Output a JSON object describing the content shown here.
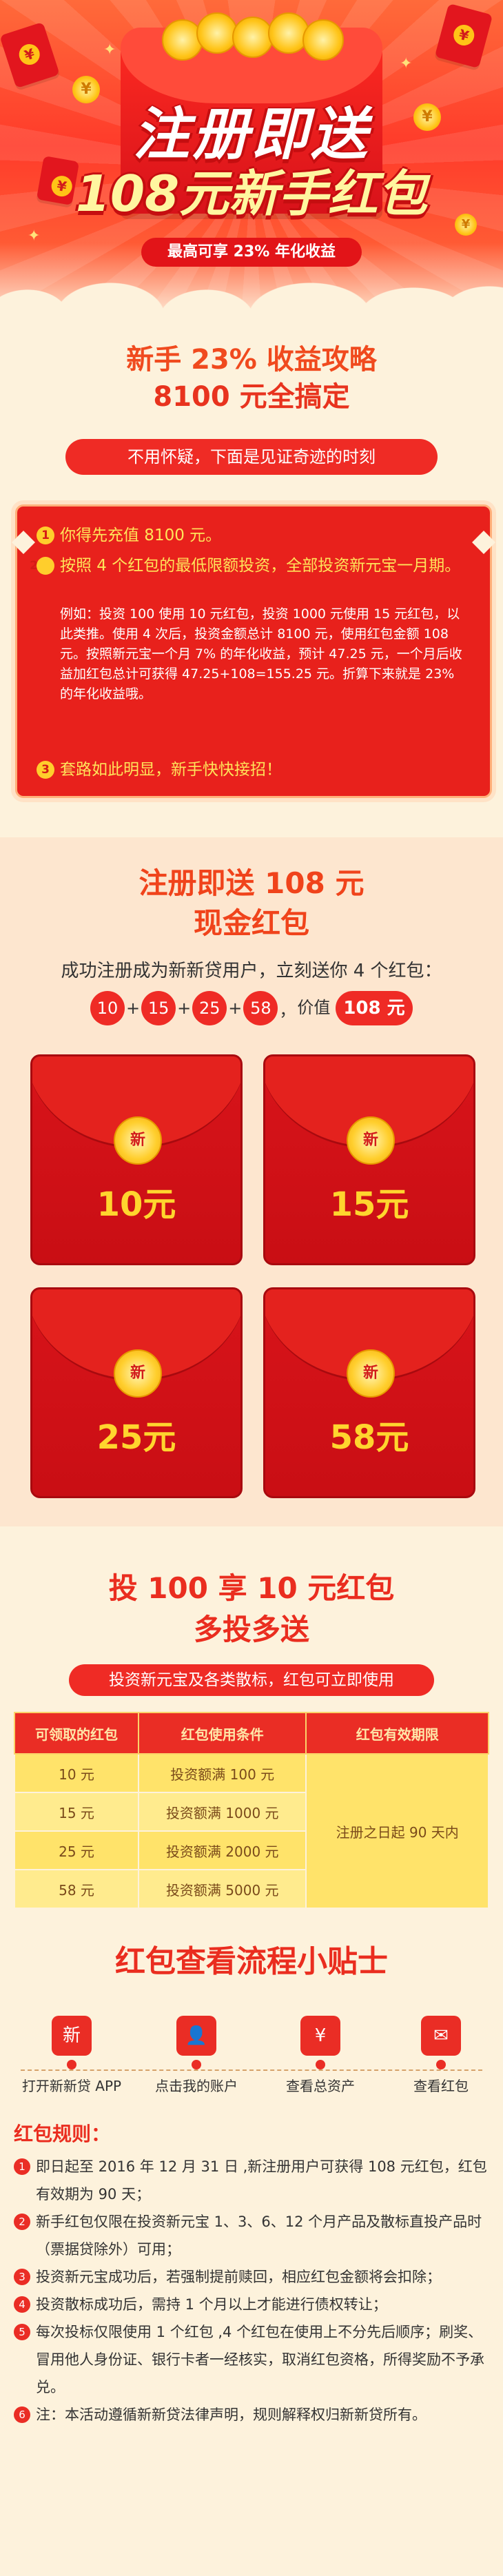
{
  "hero": {
    "title_line1": "注册即送",
    "title_line2": "108元新手红包",
    "subtitle": "最高可享 23% 年化收益"
  },
  "strategy": {
    "title_line1": "新手 23% 收益攻略",
    "title_line2": "8100 元全搞定",
    "banner": "不用怀疑，下面是见证奇迹的时刻",
    "items": [
      {
        "num": "1",
        "text": "你得先充值 8100 元。"
      },
      {
        "num": "2",
        "text": "按照 4 个红包的最低限额投资，全部投资新元宝一月期。"
      },
      {
        "num": "3",
        "text": "套路如此明显，新手快快接招！"
      }
    ],
    "example": "例如：投资 100 使用 10 元红包，投资 1000 元使用 15 元红包，以此类推。使用 4 次后，投资金额总计 8100 元，使用红包金额 108 元。按照新元宝一个月 7% 的年化收益，预计 47.25 元，一个月后收益加红包总计可获得 47.25+108=155.25 元。折算下来就是 23% 的年化收益哦。"
  },
  "cash": {
    "title_line1": "注册即送 108 元",
    "title_line2": "现金红包",
    "desc": "成功注册成为新新贷用户，立刻送你 4 个红包：",
    "chips": [
      "10",
      "15",
      "25",
      "58"
    ],
    "price_label": "价值",
    "total": "108 元",
    "coin_char": "新",
    "envelopes": [
      "10元",
      "15元",
      "25元",
      "58元"
    ]
  },
  "invest": {
    "title_line1": "投 100 享 10 元红包",
    "title_line2": "多投多送",
    "banner": "投资新元宝及各类散标，红包可立即使用",
    "headers": [
      "可领取的红包",
      "红包使用条件",
      "红包有效期限"
    ],
    "rows": [
      {
        "amount": "10 元",
        "cond": "投资额满 100 元"
      },
      {
        "amount": "15 元",
        "cond": "投资额满 1000 元"
      },
      {
        "amount": "25 元",
        "cond": "投资额满 2000 元"
      },
      {
        "amount": "58 元",
        "cond": "投资额满 5000 元"
      }
    ],
    "validity": "注册之日起 90 天内"
  },
  "tips": {
    "title": "红包查看流程小贴士",
    "steps": [
      {
        "icon": "新",
        "label": "打开新新贷 APP"
      },
      {
        "icon": "👤",
        "label": "点击我的账户"
      },
      {
        "icon": "¥",
        "label": "查看总资产"
      },
      {
        "icon": "✉",
        "label": "查看红包"
      }
    ],
    "rules_title": "红包规则：",
    "rules": [
      {
        "num": "1",
        "text": "即日起至 2016 年 12 月 31 日 ,新注册用户可获得 108 元红包，红包有效期为 90 天；"
      },
      {
        "num": "2",
        "text": "新手红包仅限在投资新元宝 1、3、6、12 个月产品及散标直投产品时（票据贷除外）可用；"
      },
      {
        "num": "3",
        "text": "投资新元宝成功后，若强制提前赎回，相应红包金额将会扣除；"
      },
      {
        "num": "4",
        "text": "投资散标成功后，需持 1 个月以上才能进行债权转让；"
      },
      {
        "num": "5",
        "text": "每次投标仅限使用 1 个红包 ,4 个红包在使用上不分先后顺序；刷奖、冒用他人身份证、银行卡者一经核实，取消红包资格，所得奖励不予承兑。"
      },
      {
        "num": "6",
        "text": "注：本活动遵循新新贷法律声明，规则解释权归新新贷所有。"
      }
    ]
  }
}
